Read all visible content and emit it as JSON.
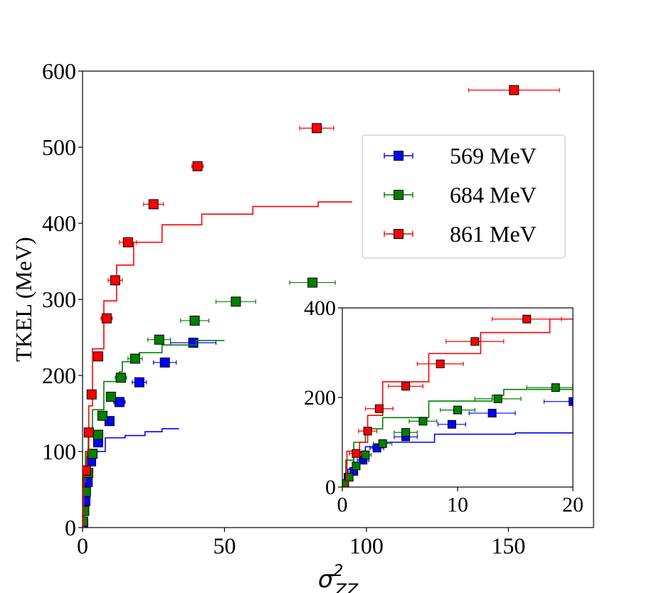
{
  "chart_data": [
    {
      "type": "scatter",
      "role": "main",
      "title": "",
      "xlabel_main": "σ",
      "xlabel_sup": "2",
      "xlabel_sub": "ZZ",
      "ylabel": "TKEL (MeV)",
      "xlim": [
        0,
        180
      ],
      "ylim": [
        0,
        600
      ],
      "xticks": [
        0,
        50,
        100,
        150
      ],
      "yticks": [
        0,
        100,
        200,
        300,
        400,
        500,
        600
      ],
      "grid": false,
      "legend_position": "upper-right",
      "series": [
        {
          "name": "569 MeV",
          "color": "#0000ff",
          "points": [
            {
              "x": 0.2,
              "y": 5,
              "xerr": 0.1
            },
            {
              "x": 0.5,
              "y": 22,
              "xerr": 0.2
            },
            {
              "x": 1,
              "y": 35,
              "xerr": 0.3
            },
            {
              "x": 1.8,
              "y": 60,
              "xerr": 0.5
            },
            {
              "x": 3,
              "y": 87,
              "xerr": 0.6
            },
            {
              "x": 5.5,
              "y": 112,
              "xerr": 1
            },
            {
              "x": 9.5,
              "y": 140,
              "xerr": 1.2
            },
            {
              "x": 13,
              "y": 165,
              "xerr": 2
            },
            {
              "x": 20,
              "y": 191,
              "xerr": 2.5
            },
            {
              "x": 29,
              "y": 217,
              "xerr": 4
            },
            {
              "x": 39,
              "y": 243,
              "xerr": 8
            }
          ],
          "step": [
            [
              0,
              0
            ],
            [
              0.5,
              0
            ],
            [
              0.5,
              40
            ],
            [
              1,
              40
            ],
            [
              1,
              78
            ],
            [
              2,
              78
            ],
            [
              2,
              90
            ],
            [
              3.5,
              90
            ],
            [
              3.5,
              100
            ],
            [
              8,
              100
            ],
            [
              8,
              118
            ],
            [
              15,
              118
            ],
            [
              15,
              121
            ],
            [
              22,
              121
            ],
            [
              22,
              126
            ],
            [
              28,
              126
            ],
            [
              28,
              130
            ],
            [
              34,
              130
            ]
          ]
        },
        {
          "name": "684 MeV",
          "color": "#008000",
          "points": [
            {
              "x": 0.2,
              "y": 8,
              "xerr": 0.1
            },
            {
              "x": 0.6,
              "y": 22,
              "xerr": 0.2
            },
            {
              "x": 1.2,
              "y": 47,
              "xerr": 0.3
            },
            {
              "x": 2,
              "y": 72,
              "xerr": 0.5
            },
            {
              "x": 3.5,
              "y": 97,
              "xerr": 0.8
            },
            {
              "x": 5.5,
              "y": 122,
              "xerr": 1
            },
            {
              "x": 7,
              "y": 147,
              "xerr": 1.2
            },
            {
              "x": 10,
              "y": 172,
              "xerr": 1.5
            },
            {
              "x": 13.5,
              "y": 197,
              "xerr": 2
            },
            {
              "x": 18.5,
              "y": 222,
              "xerr": 2.5
            },
            {
              "x": 27,
              "y": 247,
              "xerr": 4
            },
            {
              "x": 39.5,
              "y": 272,
              "xerr": 5
            },
            {
              "x": 54,
              "y": 297,
              "xerr": 7
            },
            {
              "x": 81,
              "y": 322,
              "xerr": 8
            }
          ],
          "step": [
            [
              0,
              0
            ],
            [
              0.3,
              0
            ],
            [
              0.3,
              60
            ],
            [
              1,
              60
            ],
            [
              1,
              100
            ],
            [
              2,
              100
            ],
            [
              2,
              130
            ],
            [
              3.5,
              130
            ],
            [
              3.5,
              155
            ],
            [
              7.5,
              155
            ],
            [
              7.5,
              192
            ],
            [
              13,
              192
            ],
            [
              13,
              205
            ],
            [
              14,
              205
            ],
            [
              14,
              218
            ],
            [
              20,
              218
            ],
            [
              20,
              230
            ],
            [
              28,
              230
            ],
            [
              28,
              240
            ],
            [
              40,
              240
            ],
            [
              40,
              246
            ],
            [
              50,
              246
            ]
          ]
        },
        {
          "name": "861 MeV",
          "color": "#ff0000",
          "points": [
            {
              "x": 1.2,
              "y": 75,
              "xerr": 0.6
            },
            {
              "x": 2.2,
              "y": 125,
              "xerr": 0.8
            },
            {
              "x": 3.2,
              "y": 175,
              "xerr": 1.2
            },
            {
              "x": 5.5,
              "y": 225,
              "xerr": 1.5
            },
            {
              "x": 8.5,
              "y": 275,
              "xerr": 2
            },
            {
              "x": 11.5,
              "y": 325,
              "xerr": 2.5
            },
            {
              "x": 16,
              "y": 375,
              "xerr": 3
            },
            {
              "x": 25,
              "y": 425,
              "xerr": 3.5
            },
            {
              "x": 40.5,
              "y": 475,
              "xerr": 2
            },
            {
              "x": 82.5,
              "y": 525,
              "xerr": 6
            },
            {
              "x": 152,
              "y": 575,
              "xerr": 16
            }
          ],
          "step": [
            [
              0,
              0
            ],
            [
              0.4,
              0
            ],
            [
              0.4,
              80
            ],
            [
              1.5,
              80
            ],
            [
              1.5,
              100
            ],
            [
              2.2,
              100
            ],
            [
              2.2,
              160
            ],
            [
              3.5,
              160
            ],
            [
              3.5,
              235
            ],
            [
              7.5,
              235
            ],
            [
              7.5,
              298
            ],
            [
              12,
              298
            ],
            [
              12,
              345
            ],
            [
              18,
              345
            ],
            [
              18,
              375
            ],
            [
              28,
              375
            ],
            [
              28,
              398
            ],
            [
              42,
              398
            ],
            [
              42,
              412
            ],
            [
              60,
              412
            ],
            [
              60,
              422
            ],
            [
              83,
              422
            ],
            [
              83,
              428
            ],
            [
              95,
              428
            ]
          ]
        }
      ]
    },
    {
      "type": "scatter",
      "role": "inset",
      "title": "",
      "xlim": [
        0,
        20
      ],
      "ylim": [
        0,
        400
      ],
      "xticks": [
        0,
        10,
        20
      ],
      "yticks": [
        0,
        200,
        400
      ],
      "grid": false,
      "series_ref": [
        "569 MeV",
        "684 MeV",
        "861 MeV"
      ]
    }
  ]
}
